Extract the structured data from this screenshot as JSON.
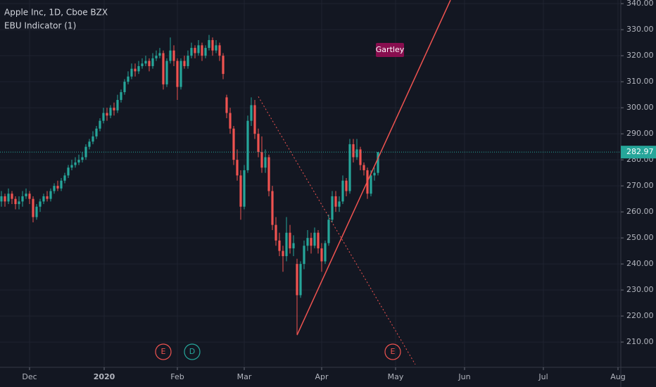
{
  "chart_data": {
    "type": "candlestick",
    "title": "Apple Inc, 1D, Cboe BZX",
    "subtitle": "EBU Indicator (1)",
    "up_color": "#26a69a",
    "down_color": "#ef5350",
    "grid": true,
    "ylim": [
      200.3,
      341.4
    ],
    "yticks": [
      {
        "value": 210,
        "label": "210.00"
      },
      {
        "value": 220,
        "label": "220.00"
      },
      {
        "value": 230,
        "label": "230.00"
      },
      {
        "value": 240,
        "label": "240.00"
      },
      {
        "value": 250,
        "label": "250.00"
      },
      {
        "value": 260,
        "label": "260.00"
      },
      {
        "value": 270,
        "label": "270.00"
      },
      {
        "value": 280,
        "label": "280.00"
      },
      {
        "value": 290,
        "label": "290.00"
      },
      {
        "value": 300,
        "label": "300.00"
      },
      {
        "value": 310,
        "label": "310.00"
      },
      {
        "value": 320,
        "label": "320.00"
      },
      {
        "value": 330,
        "label": "330.00"
      },
      {
        "value": 340,
        "label": "340.00"
      }
    ],
    "xlim": [
      -0.4,
      176
    ],
    "xticks": [
      {
        "value": 8,
        "label": "Dec"
      },
      {
        "value": 29.2,
        "label": "2020"
      },
      {
        "value": 50,
        "label": "Feb"
      },
      {
        "value": 69,
        "label": "Mar"
      },
      {
        "value": 91,
        "label": "Apr"
      },
      {
        "value": 112,
        "label": "May"
      },
      {
        "value": 131.6,
        "label": "Jun"
      },
      {
        "value": 154,
        "label": "Jul"
      },
      {
        "value": 175.2,
        "label": "Aug"
      }
    ],
    "last_price": 282.97,
    "last_price_color": "#26a69a",
    "candles": [
      [
        264,
        268,
        262,
        266
      ],
      [
        266,
        267,
        262,
        264
      ],
      [
        264,
        269,
        263,
        267
      ],
      [
        267,
        268,
        263,
        265
      ],
      [
        265,
        266,
        261,
        263
      ],
      [
        263,
        266,
        261,
        264
      ],
      [
        264,
        268,
        262,
        266
      ],
      [
        266,
        269,
        265,
        267
      ],
      [
        267,
        268,
        263,
        265
      ],
      [
        265,
        266,
        256,
        258
      ],
      [
        258,
        263,
        257,
        262
      ],
      [
        262,
        265,
        260,
        264
      ],
      [
        264,
        267,
        263,
        266
      ],
      [
        266,
        268,
        264,
        265
      ],
      [
        265,
        269,
        264,
        268
      ],
      [
        268,
        271,
        267,
        270
      ],
      [
        270,
        272,
        268,
        269
      ],
      [
        269,
        273,
        268,
        272
      ],
      [
        272,
        275,
        271,
        274
      ],
      [
        274,
        278,
        273,
        277
      ],
      [
        277,
        280,
        276,
        278
      ],
      [
        278,
        281,
        277,
        279
      ],
      [
        279,
        282,
        278,
        280
      ],
      [
        280,
        283,
        279,
        281
      ],
      [
        281,
        286,
        280,
        285
      ],
      [
        285,
        288,
        284,
        287
      ],
      [
        287,
        291,
        286,
        289
      ],
      [
        289,
        293,
        288,
        292
      ],
      [
        292,
        296,
        291,
        295
      ],
      [
        295,
        300,
        294,
        298
      ],
      [
        298,
        300,
        295,
        297
      ],
      [
        297,
        301,
        296,
        300
      ],
      [
        300,
        302,
        297,
        299
      ],
      [
        299,
        305,
        298,
        303
      ],
      [
        303,
        307,
        302,
        306
      ],
      [
        306,
        311,
        305,
        310
      ],
      [
        310,
        314,
        309,
        312
      ],
      [
        312,
        317,
        311,
        315
      ],
      [
        315,
        317,
        312,
        314
      ],
      [
        314,
        318,
        313,
        316
      ],
      [
        316,
        319,
        315,
        317
      ],
      [
        317,
        320,
        316,
        318
      ],
      [
        318,
        319,
        314,
        316
      ],
      [
        316,
        321,
        315,
        319
      ],
      [
        319,
        322,
        318,
        320
      ],
      [
        320,
        323,
        319,
        321
      ],
      [
        321,
        322,
        307,
        309
      ],
      [
        309,
        319,
        308,
        318
      ],
      [
        318,
        327,
        317,
        322
      ],
      [
        322,
        324,
        316,
        318
      ],
      [
        318,
        319,
        303,
        308
      ],
      [
        308,
        319,
        307,
        318
      ],
      [
        318,
        320,
        315,
        316
      ],
      [
        316,
        322,
        315,
        320
      ],
      [
        320,
        325,
        319,
        323
      ],
      [
        323,
        324,
        319,
        321
      ],
      [
        321,
        326,
        320,
        324
      ],
      [
        324,
        325,
        318,
        320
      ],
      [
        320,
        324,
        319,
        323
      ],
      [
        323,
        328,
        322,
        326
      ],
      [
        326,
        327,
        320,
        322
      ],
      [
        322,
        326,
        321,
        324
      ],
      [
        324,
        325,
        318,
        320
      ],
      [
        320,
        321,
        311,
        313
      ],
      [
        304,
        305,
        296,
        298
      ],
      [
        298,
        300,
        290,
        292
      ],
      [
        292,
        293,
        278,
        280
      ],
      [
        280,
        284,
        272,
        274
      ],
      [
        274,
        276,
        257,
        262
      ],
      [
        262,
        278,
        261,
        276
      ],
      [
        276,
        297,
        275,
        295
      ],
      [
        295,
        304,
        293,
        301
      ],
      [
        301,
        303,
        288,
        290
      ],
      [
        290,
        292,
        281,
        283
      ],
      [
        283,
        289,
        275,
        277
      ],
      [
        277,
        284,
        275,
        281
      ],
      [
        281,
        282,
        266,
        268
      ],
      [
        268,
        270,
        253,
        255
      ],
      [
        255,
        258,
        247,
        249
      ],
      [
        249,
        252,
        243,
        245
      ],
      [
        245,
        247,
        237,
        243
      ],
      [
        243,
        258,
        241,
        252
      ],
      [
        252,
        255,
        244,
        246
      ],
      [
        246,
        251,
        243,
        248
      ],
      [
        240,
        242,
        213,
        228
      ],
      [
        228,
        241,
        227,
        240
      ],
      [
        240,
        249,
        238,
        247
      ],
      [
        247,
        253,
        245,
        250
      ],
      [
        250,
        252,
        244,
        247
      ],
      [
        247,
        254,
        246,
        252
      ],
      [
        252,
        253,
        244,
        246
      ],
      [
        246,
        248,
        237,
        241
      ],
      [
        241,
        249,
        240,
        248
      ],
      [
        248,
        259,
        247,
        257
      ],
      [
        257,
        268,
        256,
        266
      ],
      [
        266,
        268,
        260,
        262
      ],
      [
        262,
        266,
        260,
        264
      ],
      [
        264,
        274,
        263,
        272
      ],
      [
        272,
        273,
        266,
        268
      ],
      [
        268,
        288,
        267,
        286
      ],
      [
        286,
        288,
        279,
        281
      ],
      [
        281,
        288,
        280,
        284
      ],
      [
        284,
        285,
        276,
        278
      ],
      [
        278,
        279,
        274,
        276
      ],
      [
        276,
        277,
        265,
        267
      ],
      [
        267,
        276,
        266,
        274
      ],
      [
        274,
        277,
        272,
        275
      ],
      [
        275,
        283,
        274,
        282.97
      ]
    ],
    "annotations": [
      {
        "text": "Gartley",
        "x": 110.4,
        "y": 322.2,
        "color": "#880e4f"
      }
    ],
    "trend_lines": [
      {
        "x1": 84,
        "y1": 212.7,
        "x2": 127.6,
        "y2": 341.35,
        "color": "#ef5350",
        "dashed": false
      },
      {
        "x1": 73,
        "y1": 304.3,
        "x2": 117.6,
        "y2": 201.4,
        "color": "#ef5350",
        "dashed": true
      }
    ],
    "events": [
      {
        "label": "E",
        "x": 46,
        "color": "#ef5350"
      },
      {
        "label": "D",
        "x": 54.2,
        "color": "#26a69a"
      },
      {
        "label": "E",
        "x": 111.2,
        "color": "#ef5350"
      }
    ]
  }
}
